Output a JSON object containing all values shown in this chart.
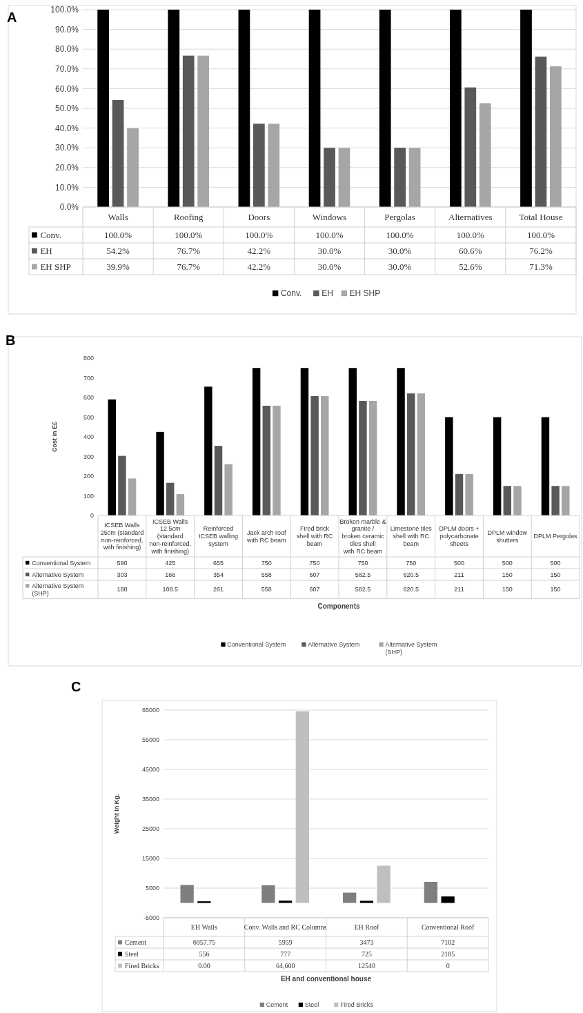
{
  "chart_data": [
    {
      "type": "bar",
      "annotations": [
        "A"
      ],
      "categories": [
        "Walls",
        "Roofing",
        "Doors",
        "Windows",
        "Pergolas",
        "Alternatives",
        "Total House"
      ],
      "series": [
        {
          "name": "Conv.",
          "color": "#000000",
          "values": [
            100,
            100,
            100,
            100,
            100,
            100,
            100
          ],
          "value_labels": [
            "100.0%",
            "100.0%",
            "100.0%",
            "100.0%",
            "100.0%",
            "100.0%",
            "100.0%"
          ]
        },
        {
          "name": "EH",
          "color": "#595959",
          "values": [
            54.2,
            76.7,
            42.2,
            30.0,
            30.0,
            60.6,
            76.2
          ],
          "value_labels": [
            "54.2%",
            "76.7%",
            "42.2%",
            "30.0%",
            "30.0%",
            "60.6%",
            "76.2%"
          ]
        },
        {
          "name": "EH SHP",
          "color": "#a6a6a6",
          "values": [
            39.9,
            76.7,
            42.2,
            30.0,
            30.0,
            52.6,
            71.3
          ],
          "value_labels": [
            "39.9%",
            "76.7%",
            "42.2%",
            "30.0%",
            "30.0%",
            "52.6%",
            "71.3%"
          ]
        }
      ],
      "ylim": [
        0,
        100
      ],
      "yticks": [
        {
          "value": 0,
          "label": "0.0%"
        },
        {
          "value": 10,
          "label": "10.0%"
        },
        {
          "value": 20,
          "label": "20.0%"
        },
        {
          "value": 30,
          "label": "30.0%"
        },
        {
          "value": 40,
          "label": "40.0%"
        },
        {
          "value": 50,
          "label": "50.0%"
        },
        {
          "value": 60,
          "label": "60.0%"
        },
        {
          "value": 70,
          "label": "70.0%"
        },
        {
          "value": 80,
          "label": "80.0%"
        },
        {
          "value": 90,
          "label": "90.0%"
        },
        {
          "value": 100,
          "label": "100.0%"
        }
      ],
      "grid": "y",
      "legend": "bottom"
    },
    {
      "type": "bar",
      "annotations": [
        "B"
      ],
      "xlabel": "Components",
      "ylabel": "Cost in E£",
      "categories": [
        "ICSEB Walls 25cm (standard non-reinforced, with finishing)",
        "ICSEB Walls 12.5cm (standard non-reinforced, with finishing)",
        "Reinforced ICSEB walling system",
        "Jack arch roof with RC beam",
        "Fired brick shell with RC beam",
        "Broken marble & granite / broken ceramic tiles shell with RC beam",
        "Limestone tiles shell with RC beam",
        "DPLM doors + polycarbonate sheets",
        "DPLM window shutters",
        "DPLM Pergolas"
      ],
      "series": [
        {
          "name": "Conventional System",
          "color": "#000000",
          "values": [
            590,
            425,
            655,
            750,
            750,
            750,
            750,
            500,
            500,
            500
          ]
        },
        {
          "name": "Alternative System",
          "color": "#595959",
          "values": [
            303,
            166,
            354,
            558,
            607,
            582.5,
            620.5,
            211,
            150,
            150
          ]
        },
        {
          "name": "Alternative System (SHP)",
          "color": "#a6a6a6",
          "values": [
            188,
            108.5,
            261,
            558,
            607,
            582.5,
            620.5,
            211,
            150,
            150
          ]
        }
      ],
      "ylim": [
        0,
        800
      ],
      "yticks": [
        0,
        100,
        200,
        300,
        400,
        500,
        600,
        700,
        800
      ],
      "data_labels": true,
      "legend": "bottom"
    },
    {
      "type": "bar",
      "annotations": [
        "C"
      ],
      "xlabel": "EH and conventional house",
      "ylabel": "Weight in Kg.",
      "categories": [
        "EH Walls",
        "Conv. Walls and RC Columns",
        "EH Roof",
        "Conventional Roof"
      ],
      "series": [
        {
          "name": "Cement",
          "color": "#7f7f7f",
          "values": [
            6057.75,
            5959,
            3473,
            7102
          ],
          "value_labels": [
            "6057.75",
            "5959",
            "3473",
            "7102"
          ]
        },
        {
          "name": "Steel",
          "color": "#000000",
          "values": [
            556,
            777,
            725,
            2185
          ],
          "value_labels": [
            "556",
            "777",
            "725",
            "2185"
          ]
        },
        {
          "name": "Fired Bricks",
          "color": "#bfbfbf",
          "values": [
            0,
            64600,
            12540,
            0
          ],
          "value_labels": [
            "0.00",
            "64,600",
            "12540",
            "0"
          ]
        }
      ],
      "ylim": [
        -5000,
        65000
      ],
      "yticks": [
        -5000,
        5000,
        15000,
        25000,
        35000,
        45000,
        55000,
        65000
      ],
      "grid": "y",
      "legend": "bottom"
    }
  ]
}
